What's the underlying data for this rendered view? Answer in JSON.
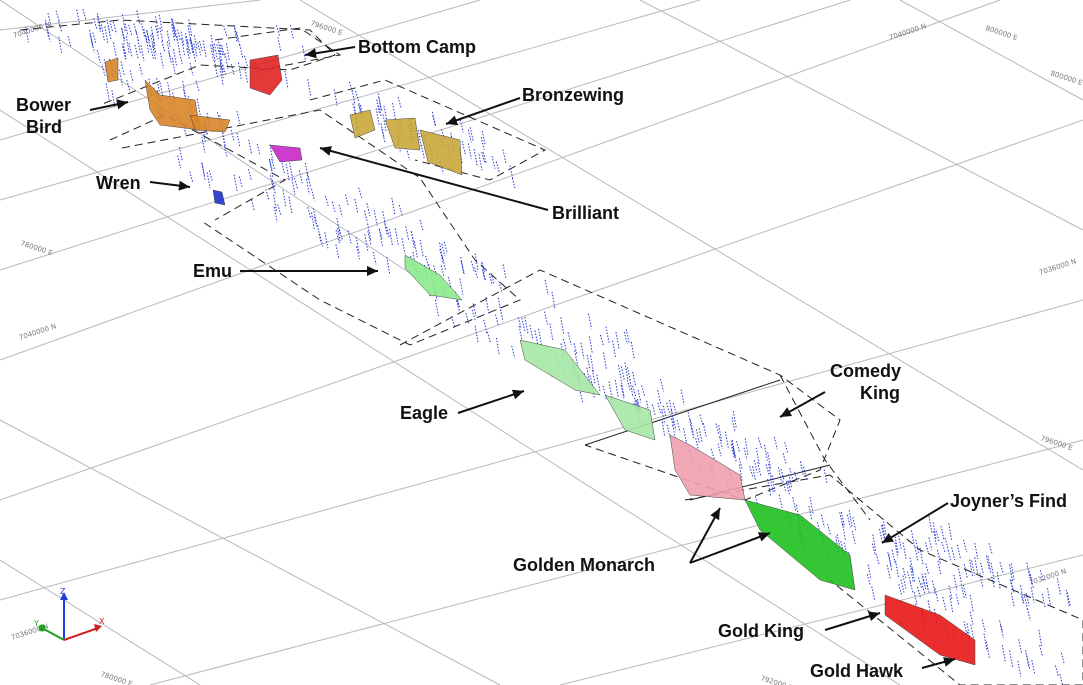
{
  "labels": {
    "bottom_camp": "Bottom Camp",
    "bower_bird": [
      "Bower",
      "Bird"
    ],
    "bronzewing": "Bronzewing",
    "wren": "Wren",
    "brilliant": "Brilliant",
    "emu": "Emu",
    "eagle": "Eagle",
    "comedy_king": [
      "Comedy",
      "King"
    ],
    "joyners_find": "Joyner’s Find",
    "golden_monarch": "Golden Monarch",
    "gold_king": "Gold King",
    "gold_hawk": "Gold Hawk"
  },
  "grid_labels": {
    "n1": "7040000 N",
    "n2": "7036000 N",
    "n3": "7032000 N",
    "n4": "7040000 N",
    "n5": "7036000 N",
    "e1": "796000 E",
    "e2": "800000 E",
    "e3": "800000 E",
    "e4": "780000 E",
    "e5": "780000 E",
    "e6": "796000 E",
    "e7": "792000 E"
  },
  "axes": {
    "x": "X",
    "y": "Y",
    "z": "Z"
  },
  "colors": {
    "bottom_camp": "#e02424",
    "bower_bird": "#d9862a",
    "bronzewing": "#c9a93a",
    "wren": "#2030c8",
    "brilliant": "#c828c8",
    "emu": "#8cec8c",
    "eagle": "#a6e8a6",
    "golden_monarch_pink": "#f0a0b0",
    "golden_monarch_green": "#20c020",
    "gold_king": "#e81818",
    "drillholes": "#2a3ad0"
  }
}
